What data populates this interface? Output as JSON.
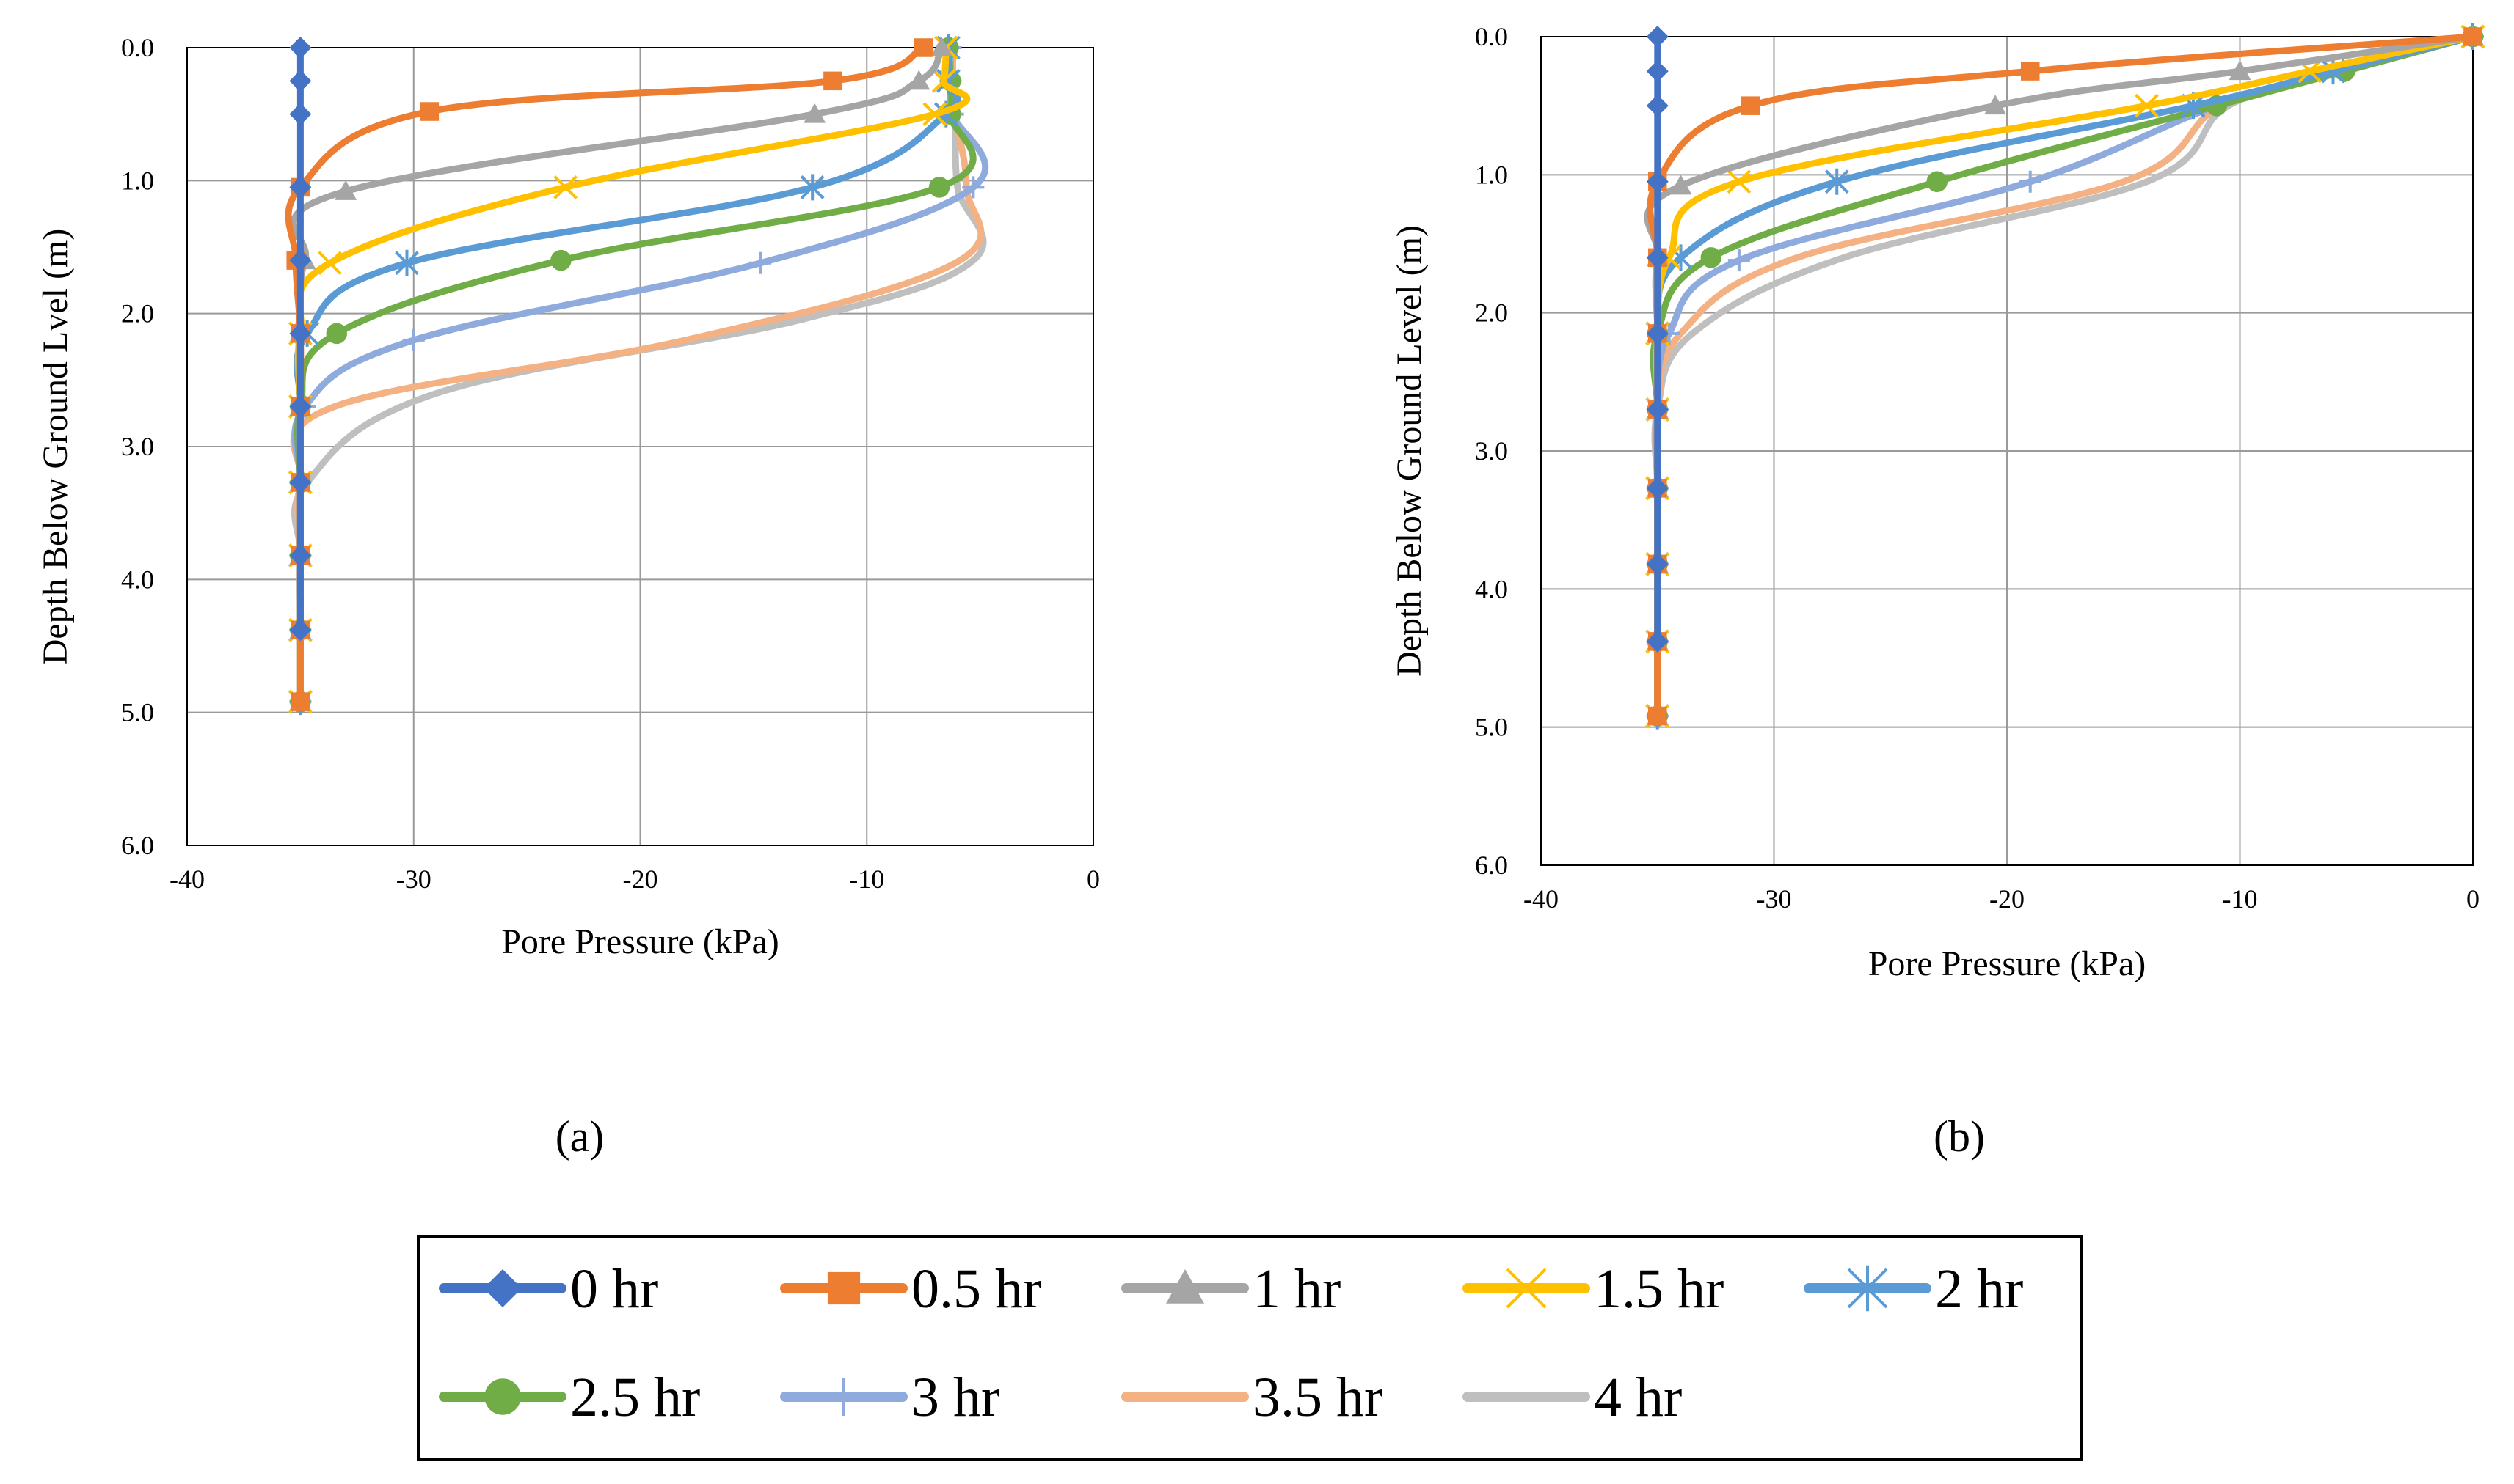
{
  "figure": {
    "panel_labels": [
      "(a)",
      "(b)"
    ],
    "legend": {
      "entries": [
        "0 hr",
        "0.5 hr",
        "1 hr",
        "1.5 hr",
        "2 hr",
        "2.5 hr",
        "3 hr",
        "3.5 hr",
        "4 hr"
      ]
    }
  },
  "chart_data": [
    {
      "type": "line",
      "panel": "(a)",
      "xlabel": "Pore Pressure (kPa)",
      "ylabel": "Depth Below Ground Lvel (m)",
      "xlim": [
        -40,
        0
      ],
      "ylim": [
        0,
        6
      ],
      "y_inverted": true,
      "grid": true,
      "xticks": [
        "-40",
        "-30",
        "-20",
        "-10",
        "0"
      ],
      "yticks": [
        "0.0",
        "1.0",
        "2.0",
        "3.0",
        "4.0",
        "5.0",
        "6.0"
      ],
      "series": [
        {
          "name": "0 hr",
          "color": "#4472C4",
          "marker": "diamond",
          "x": [
            -35,
            -35,
            -35,
            -35,
            -35,
            -35,
            -35,
            -35,
            -35,
            -35
          ],
          "y": [
            0,
            0.25,
            0.5,
            1.05,
            1.6,
            2.15,
            2.7,
            3.27,
            3.82,
            4.38
          ]
        },
        {
          "name": "0.5 hr",
          "color": "#ED7D31",
          "marker": "square",
          "x": [
            -7.5,
            -11.5,
            -29.3,
            -35,
            -35.2,
            -35,
            -35,
            -35,
            -35,
            -35,
            -35
          ],
          "y": [
            0,
            0.25,
            0.48,
            1.05,
            1.6,
            2.15,
            2.7,
            3.27,
            3.82,
            4.38,
            4.92
          ]
        },
        {
          "name": "1 hr",
          "color": "#A5A5A5",
          "marker": "triangle",
          "x": [
            -6.7,
            -7.7,
            -12.3,
            -33,
            -34.8,
            -35,
            -35,
            -35,
            -35,
            -35,
            -35
          ],
          "y": [
            0,
            0.25,
            0.5,
            1.08,
            1.6,
            2.15,
            2.7,
            3.27,
            3.82,
            4.38,
            4.92
          ]
        },
        {
          "name": "1.5 hr",
          "color": "#FFC000",
          "marker": "x",
          "x": [
            -6.5,
            -6.6,
            -7,
            -23.3,
            -33.7,
            -35,
            -35,
            -35,
            -35,
            -35,
            -35
          ],
          "y": [
            0,
            0.25,
            0.5,
            1.05,
            1.62,
            2.15,
            2.7,
            3.27,
            3.82,
            4.38,
            4.92
          ]
        },
        {
          "name": "2 hr",
          "color": "#5B9BD5",
          "marker": "asterisk",
          "x": [
            -6.4,
            -6.4,
            -6.5,
            -12.4,
            -30.3,
            -34.7,
            -35,
            -35,
            -35,
            -35,
            -35
          ],
          "y": [
            0,
            0.25,
            0.5,
            1.05,
            1.62,
            2.15,
            2.7,
            3.27,
            3.82,
            4.38,
            4.92
          ]
        },
        {
          "name": "2.5 hr",
          "color": "#70AD47",
          "marker": "circle",
          "x": [
            -6.4,
            -6.3,
            -6.3,
            -6.8,
            -23.5,
            -33.4,
            -35,
            -35,
            -35,
            -35,
            -35
          ],
          "y": [
            0,
            0.25,
            0.5,
            1.05,
            1.6,
            2.15,
            2.7,
            3.27,
            3.82,
            4.38,
            4.92
          ]
        },
        {
          "name": "3 hr",
          "color": "#8FAADC",
          "marker": "plus",
          "x": [
            -6.3,
            -6.3,
            -6.2,
            -5.3,
            -14.7,
            -30,
            -34.8,
            -35,
            -35,
            -35,
            -35
          ],
          "y": [
            0,
            0.25,
            0.5,
            1.05,
            1.62,
            2.2,
            2.7,
            3.27,
            3.82,
            4.38,
            4.92
          ]
        },
        {
          "name": "3.5 hr",
          "color": "#F4B183",
          "marker": "none",
          "x": [
            -6.2,
            -6.2,
            -6.1,
            -5.6,
            -6.1,
            -18,
            -33.5,
            -35,
            -35,
            -35,
            -35
          ],
          "y": [
            0,
            0.25,
            0.5,
            1.05,
            1.62,
            2.2,
            2.7,
            3.27,
            3.82,
            4.38,
            4.92
          ]
        },
        {
          "name": "4 hr",
          "color": "#BFBFBF",
          "marker": "none",
          "x": [
            -6.2,
            -6.2,
            -6.1,
            -6,
            -5.3,
            -13,
            -29,
            -34.7,
            -35,
            -35,
            -35
          ],
          "y": [
            0,
            0.25,
            0.5,
            1.05,
            1.6,
            2.05,
            2.6,
            3.27,
            3.82,
            4.38,
            4.92
          ]
        }
      ]
    },
    {
      "type": "line",
      "panel": "(b)",
      "xlabel": "Pore Pressure (kPa)",
      "ylabel": "Depth Below Ground Level (m)",
      "xlim": [
        -40,
        0
      ],
      "ylim": [
        0,
        6
      ],
      "y_inverted": true,
      "grid": true,
      "xticks": [
        "-40",
        "-30",
        "-20",
        "-10",
        "0"
      ],
      "yticks": [
        "0.0",
        "1.0",
        "2.0",
        "3.0",
        "4.0",
        "5.0",
        "6.0"
      ],
      "series": [
        {
          "name": "0 hr",
          "color": "#4472C4",
          "marker": "diamond",
          "x": [
            -35,
            -35,
            -35,
            -35,
            -35,
            -35,
            -35,
            -35,
            -35,
            -35
          ],
          "y": [
            0,
            0.25,
            0.5,
            1.05,
            1.6,
            2.15,
            2.7,
            3.27,
            3.82,
            4.38
          ]
        },
        {
          "name": "0.5 hr",
          "color": "#ED7D31",
          "marker": "square",
          "x": [
            0,
            -19,
            -31,
            -35,
            -35,
            -35,
            -35,
            -35,
            -35,
            -35,
            -35
          ],
          "y": [
            0,
            0.25,
            0.5,
            1.05,
            1.6,
            2.15,
            2.7,
            3.27,
            3.82,
            4.38,
            4.92
          ]
        },
        {
          "name": "1 hr",
          "color": "#A5A5A5",
          "marker": "triangle",
          "x": [
            0,
            -10,
            -20.5,
            -34,
            -35,
            -35,
            -35,
            -35,
            -35,
            -35,
            -35
          ],
          "y": [
            0,
            0.25,
            0.5,
            1.08,
            1.6,
            2.15,
            2.7,
            3.27,
            3.82,
            4.38,
            4.92
          ]
        },
        {
          "name": "1.5 hr",
          "color": "#FFC000",
          "marker": "x",
          "x": [
            0,
            -7,
            -14,
            -31.5,
            -34.5,
            -35,
            -35,
            -35,
            -35,
            -35,
            -35
          ],
          "y": [
            0,
            0.25,
            0.5,
            1.05,
            1.6,
            2.15,
            2.7,
            3.27,
            3.82,
            4.38,
            4.92
          ]
        },
        {
          "name": "2 hr",
          "color": "#5B9BD5",
          "marker": "asterisk",
          "x": [
            0,
            -6,
            -12,
            -27.3,
            -34,
            -35,
            -35,
            -35,
            -35,
            -35,
            -35
          ],
          "y": [
            0,
            0.25,
            0.5,
            1.05,
            1.6,
            2.15,
            2.7,
            3.27,
            3.82,
            4.38,
            4.92
          ]
        },
        {
          "name": "2.5 hr",
          "color": "#70AD47",
          "marker": "circle",
          "x": [
            0,
            -5.5,
            -11,
            -23,
            -32.7,
            -35,
            -35,
            -35,
            -35,
            -35,
            -35
          ],
          "y": [
            0,
            0.25,
            0.5,
            1.05,
            1.6,
            2.15,
            2.7,
            3.27,
            3.82,
            4.38,
            4.92
          ]
        },
        {
          "name": "3 hr",
          "color": "#8FAADC",
          "marker": "plus",
          "x": [
            0,
            -5.5,
            -11,
            -19,
            -31.5,
            -34.5,
            -35,
            -35,
            -35,
            -35,
            -35
          ],
          "y": [
            0,
            0.25,
            0.5,
            1.05,
            1.62,
            2.15,
            2.7,
            3.27,
            3.82,
            4.38,
            4.92
          ]
        },
        {
          "name": "3.5 hr",
          "color": "#F4B183",
          "marker": "none",
          "x": [
            0,
            -5.5,
            -10.8,
            -15,
            -29,
            -34,
            -35,
            -35,
            -35,
            -35,
            -35
          ],
          "y": [
            0,
            0.25,
            0.5,
            1.05,
            1.6,
            2.15,
            2.7,
            3.27,
            3.82,
            4.38,
            4.92
          ]
        },
        {
          "name": "4 hr",
          "color": "#BFBFBF",
          "marker": "none",
          "x": [
            0,
            -5.5,
            -10.5,
            -14,
            -27,
            -33.5,
            -35,
            -35,
            -35,
            -35,
            -35
          ],
          "y": [
            0,
            0.25,
            0.5,
            1.05,
            1.6,
            2.15,
            2.7,
            3.27,
            3.82,
            4.38,
            4.92
          ]
        }
      ]
    }
  ]
}
